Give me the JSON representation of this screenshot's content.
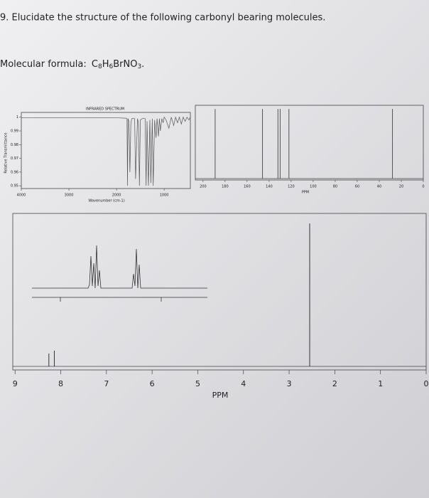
{
  "header": {
    "title": "9. Elucidate the structure of the following carbonyl bearing molecules.",
    "formula_label": "Molecular formula:",
    "formula": [
      "C",
      "8",
      "H",
      "6",
      "BrNO",
      "3",
      "."
    ]
  },
  "ir": {
    "title": "INFRARED SPECTRUM",
    "y_label": "Relative Transmittance",
    "x_label": "Wavenumber (cm-1)",
    "xlim": [
      4000,
      450
    ],
    "ylim": [
      0.948,
      1.0035
    ],
    "xticks": [
      4000,
      3000,
      2000,
      1000
    ],
    "yticks": [
      1,
      0.99,
      0.98,
      0.97,
      0.96,
      0.95
    ],
    "x": [
      4000,
      3000,
      2000,
      1960,
      1800,
      1780,
      1770,
      1760,
      1740,
      1720,
      1700,
      1680,
      1620,
      1600,
      1560,
      1540,
      1520,
      1500,
      1460,
      1400,
      1380,
      1360,
      1330,
      1300,
      1280,
      1250,
      1230,
      1200,
      1170,
      1150,
      1120,
      1100,
      1080,
      1050,
      1020,
      1000,
      960,
      900,
      850,
      800,
      760,
      720,
      680,
      640,
      600,
      560,
      520,
      480,
      450
    ],
    "y": [
      0.9995,
      0.9995,
      0.9995,
      0.9995,
      0.9993,
      0.999,
      0.95,
      0.999,
      0.997,
      0.96,
      0.995,
      0.999,
      0.999,
      0.955,
      0.999,
      0.996,
      0.95,
      0.998,
      0.999,
      0.999,
      0.95,
      0.997,
      0.95,
      0.998,
      0.952,
      0.999,
      0.95,
      0.998,
      0.985,
      0.999,
      0.986,
      0.999,
      0.99,
      0.999,
      0.996,
      1.0,
      0.998,
      0.992,
      1.0,
      0.994,
      1.0,
      0.996,
      1.0,
      0.995,
      1.0,
      0.997,
      1.0,
      0.998,
      1.0
    ]
  },
  "c13": {
    "x_label": "PPM",
    "xlim": [
      207,
      0
    ],
    "ylim": [
      0,
      1
    ],
    "xticks": [
      200,
      180,
      160,
      140,
      120,
      100,
      80,
      60,
      40,
      20,
      0
    ],
    "peaks": [
      189,
      146,
      132,
      130,
      122,
      28
    ],
    "intensity": [
      0.95,
      0.95,
      0.95,
      0.95,
      0.95,
      0.95
    ]
  },
  "h1": {
    "x_label": "PPM",
    "xlim": [
      9.05,
      0
    ],
    "ylim": [
      0,
      1.07
    ],
    "xticks": [
      9,
      8,
      7,
      6,
      5,
      4,
      3,
      2,
      1,
      0
    ],
    "peaks": [
      8.26,
      8.14,
      2.55
    ],
    "intensity": [
      0.09,
      0.11,
      1
    ]
  }
}
